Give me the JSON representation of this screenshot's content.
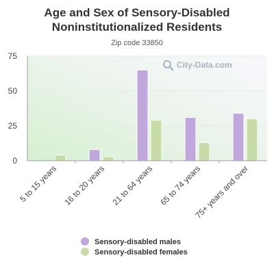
{
  "chart_data": {
    "type": "bar",
    "title": [
      "Age and Sex of Sensory-Disabled",
      "Noninstitutionalized Residents"
    ],
    "subtitle": "Zip code 33850",
    "xlabel": "",
    "ylabel": "",
    "categories": [
      "5 to 15 years",
      "16 to 20 years",
      "21 to 64 years",
      "65 to 74 years",
      "75+ years and over"
    ],
    "series": [
      {
        "name": "Sensory-disabled males",
        "color": "#c0a8dc",
        "values": [
          0,
          8,
          65,
          31,
          34
        ]
      },
      {
        "name": "Sensory-disabled females",
        "color": "#c6dba6",
        "values": [
          4,
          3,
          29,
          13,
          30
        ]
      }
    ],
    "ylim": [
      0,
      75
    ],
    "yticks": [
      0,
      25,
      50,
      75
    ],
    "grid": true,
    "legend_position": "bottom"
  },
  "watermark": {
    "text": "City-Data.com",
    "icon": "magnifier-icon"
  }
}
